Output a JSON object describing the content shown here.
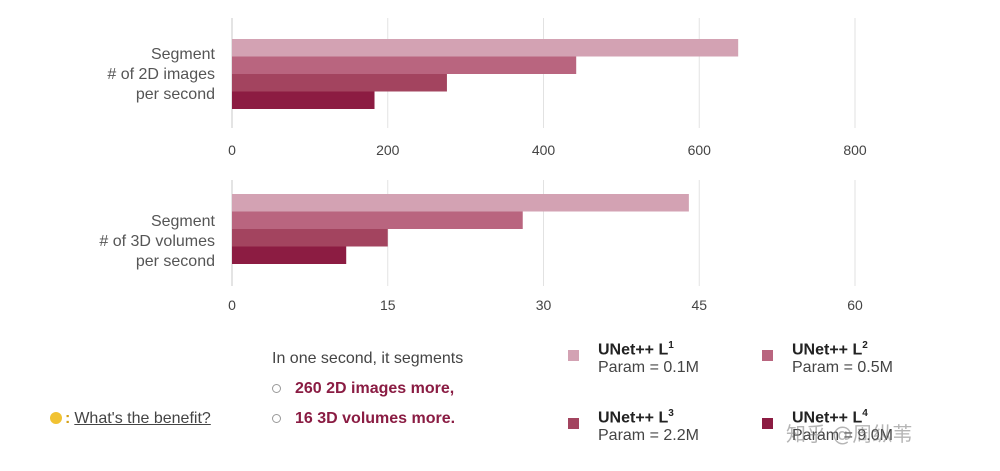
{
  "chart_data": [
    {
      "type": "bar",
      "orientation": "horizontal",
      "title": "",
      "ylabel_lines": [
        "Segment",
        "# of 2D images",
        "per second"
      ],
      "xlabel": "",
      "xlim": [
        0,
        800
      ],
      "xticks": [
        "0",
        "200",
        "400",
        "600",
        "800"
      ],
      "grid": true,
      "categories": [
        "UNet++ L1",
        "UNet++ L2",
        "UNet++ L3",
        "UNet++ L4"
      ],
      "values": [
        650,
        442,
        276,
        183
      ]
    },
    {
      "type": "bar",
      "orientation": "horizontal",
      "title": "",
      "ylabel_lines": [
        "Segment",
        "# of 3D volumes",
        "per second"
      ],
      "xlabel": "",
      "xlim": [
        0,
        60
      ],
      "xticks": [
        "0",
        "15",
        "30",
        "45",
        "60"
      ],
      "grid": true,
      "categories": [
        "UNet++ L1",
        "UNet++ L2",
        "UNet++ L3",
        "UNet++ L4"
      ],
      "values": [
        44,
        28,
        15,
        11
      ]
    }
  ],
  "colors": [
    "#d3a2b3",
    "#b9657f",
    "#a3445f",
    "#8c1c42"
  ],
  "summary": {
    "lead": "In one second, it segments",
    "bullets": [
      "260 2D images more,",
      "16 3D volumes more."
    ]
  },
  "benefit": {
    "icon": "lightbulb-icon",
    "text": "What's the benefit?"
  },
  "legend": [
    {
      "name": "UNet++ L",
      "sup": "1",
      "param": "Param = 0.1M",
      "color": "#d3a2b3"
    },
    {
      "name": "UNet++ L",
      "sup": "2",
      "param": "Param = 0.5M",
      "color": "#b9657f"
    },
    {
      "name": "UNet++ L",
      "sup": "3",
      "param": "Param = 2.2M",
      "color": "#a3445f"
    },
    {
      "name": "UNet++ L",
      "sup": "4",
      "param": "Param = 9.0M",
      "color": "#8c1c42"
    }
  ],
  "watermark": "知乎 @周纵苇"
}
